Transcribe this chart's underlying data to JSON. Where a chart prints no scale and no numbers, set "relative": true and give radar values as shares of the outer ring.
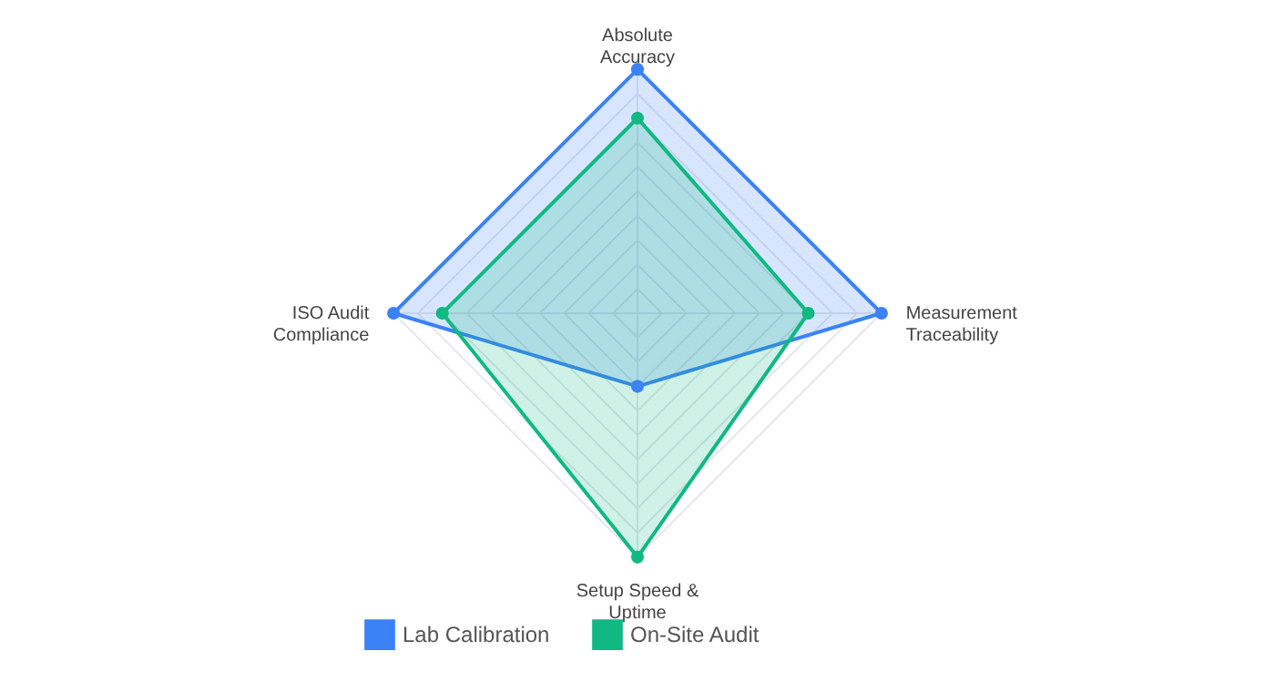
{
  "chart_data": {
    "type": "radar",
    "relative": true,
    "grid": true,
    "legend": "bottom",
    "marker": "circle",
    "categories": [
      "Absolute Accuracy",
      "Measurement Traceability",
      "Setup Speed & Uptime",
      "ISO Audit Compliance"
    ],
    "series": [
      {
        "name": "Lab Calibration",
        "color": "#3b82f6",
        "values": [
          1,
          1,
          0.3,
          1
        ]
      },
      {
        "name": "On-Site Audit",
        "color": "#10b981",
        "values": [
          0.8,
          0.7,
          1,
          0.8
        ]
      }
    ]
  }
}
